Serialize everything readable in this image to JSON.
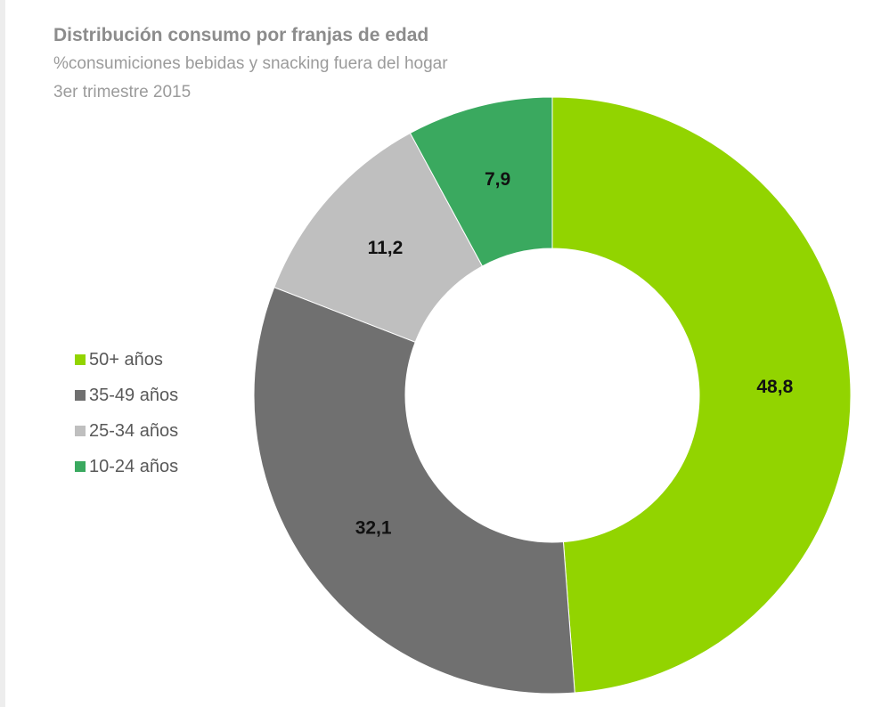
{
  "chart_data": {
    "type": "pie",
    "donut": true,
    "title": "Distribución consumo por franjas de edad",
    "subtitle_lines": [
      "%consumiciones bebidas y snacking fuera del hogar",
      "3er trimestre 2015"
    ],
    "categories": [
      "50+ años",
      "35-49 años",
      "25-34 años",
      "10-24 años"
    ],
    "values": [
      48.8,
      32.1,
      11.2,
      7.9
    ],
    "value_labels": [
      "48,8",
      "32,1",
      "11,2",
      "7,9"
    ],
    "colors": [
      "#92d400",
      "#707070",
      "#bfbfbf",
      "#3aa95f"
    ],
    "legend_position": "left"
  }
}
